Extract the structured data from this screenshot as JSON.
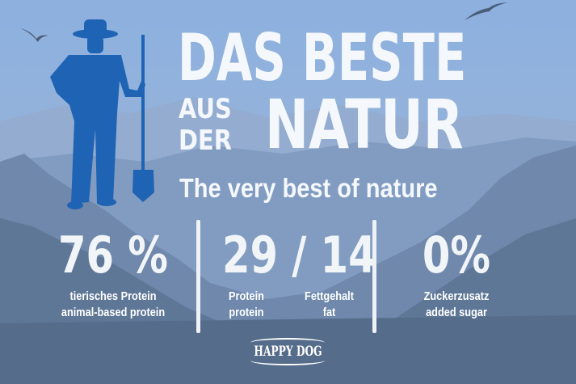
{
  "headline": {
    "line1": "DAS BESTE",
    "small1": "AUS",
    "small2": "DER",
    "big2": "NATUR",
    "subtitle": "The very best of nature"
  },
  "stats": [
    {
      "value": "76 %",
      "label_de": "tierisches Protein",
      "label_en": "animal-based protein"
    },
    {
      "value": "29 / 14",
      "items": [
        {
          "label_de": "Protein",
          "label_en": "protein"
        },
        {
          "label_de": "Fettgehalt",
          "label_en": "fat"
        }
      ]
    },
    {
      "value": "0%",
      "label_de": "Zuckerzusatz",
      "label_en": "added sugar"
    }
  ],
  "logo": {
    "text": "HAPPY DOG"
  },
  "colors": {
    "sky": "#8fb1dd",
    "mountains": "#5d7595",
    "farmer": "#1f64b4",
    "text": "#f4f7fb"
  }
}
